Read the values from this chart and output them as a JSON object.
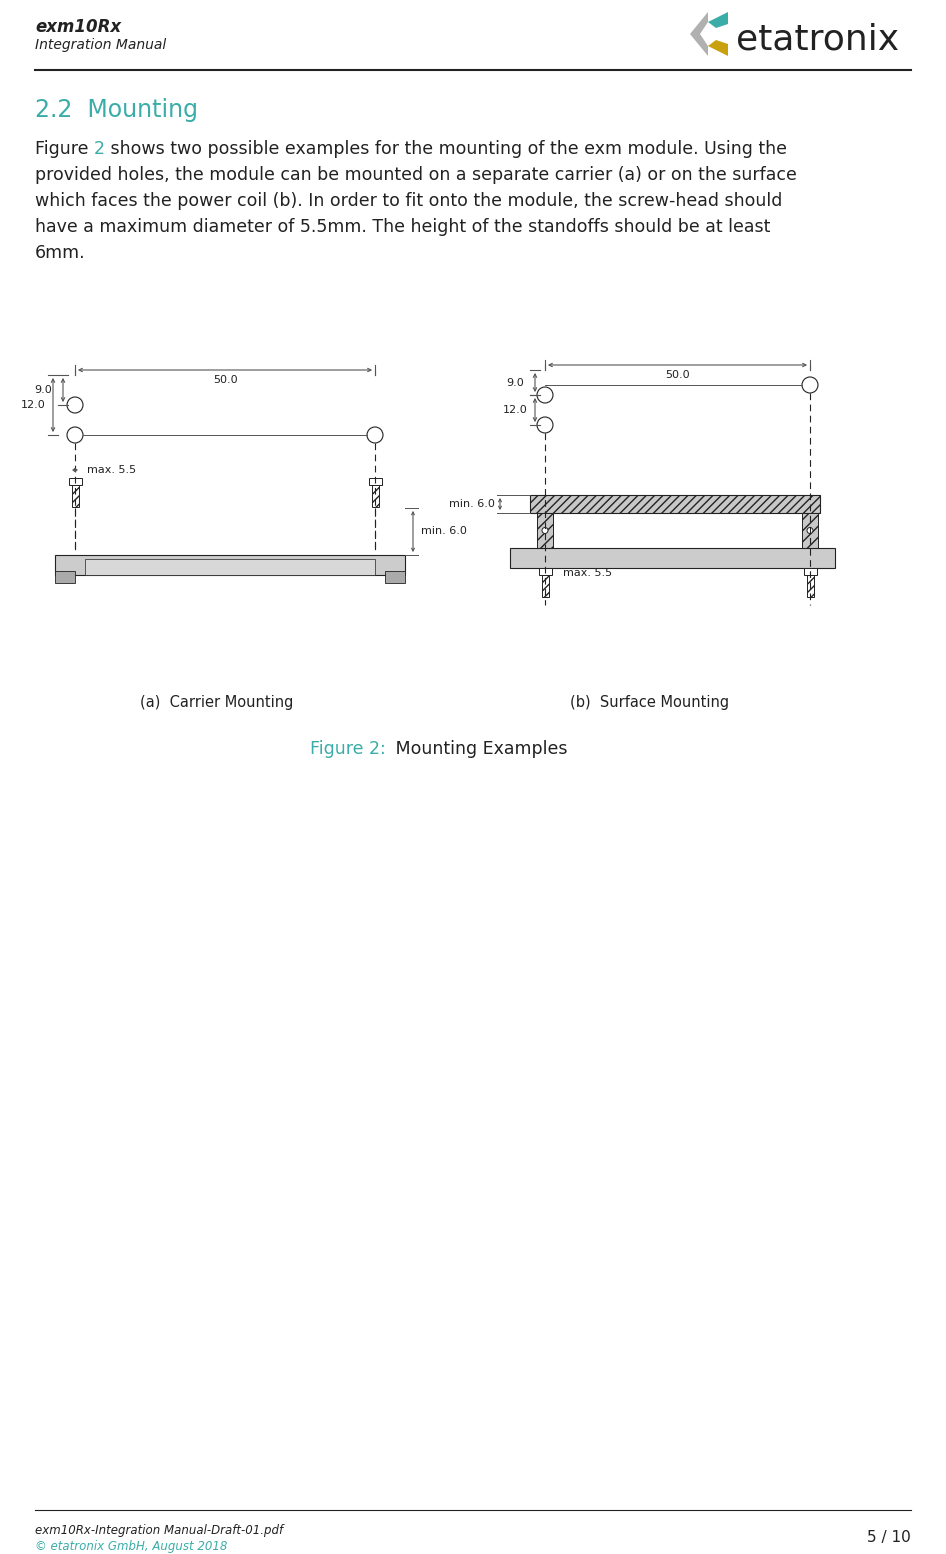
{
  "page_title": "exm10Rx",
  "page_subtitle": "Integration Manual",
  "logo_text": "etatronix",
  "section_title": "2.2  Mounting",
  "body_text_parts": [
    {
      "text": "Figure ",
      "color": "dark"
    },
    {
      "text": "2",
      "color": "teal"
    },
    {
      "text": " shows two possible examples for the mounting of the exm module. Using the\nprovided holes, the module can be mounted on a separate carrier (a) or on the surface\nwhich faces the power coil (b). In order to fit onto the module, the screw-head should\nhave a maximum diameter of 5.5mm. The height of the standoffs should be at least\n6mm.",
      "color": "dark"
    }
  ],
  "label_a": "(a)  Carrier Mounting",
  "label_b": "(b)  Surface Mounting",
  "caption_teal": "Figure 2:",
  "caption_dark": " Mounting Examples",
  "footer_left1": "exm10Rx-Integration Manual-Draft-01.pdf",
  "footer_left2": "© etatronix GmbH, August 2018",
  "footer_right": "5 / 10",
  "teal_color": "#3aada8",
  "dark_color": "#222222",
  "light_gray": "#cccccc",
  "module_gray": "#c8c8c8",
  "hatch_color": "#888888",
  "bg_color": "#ffffff",
  "dim_line_color": "#555555"
}
